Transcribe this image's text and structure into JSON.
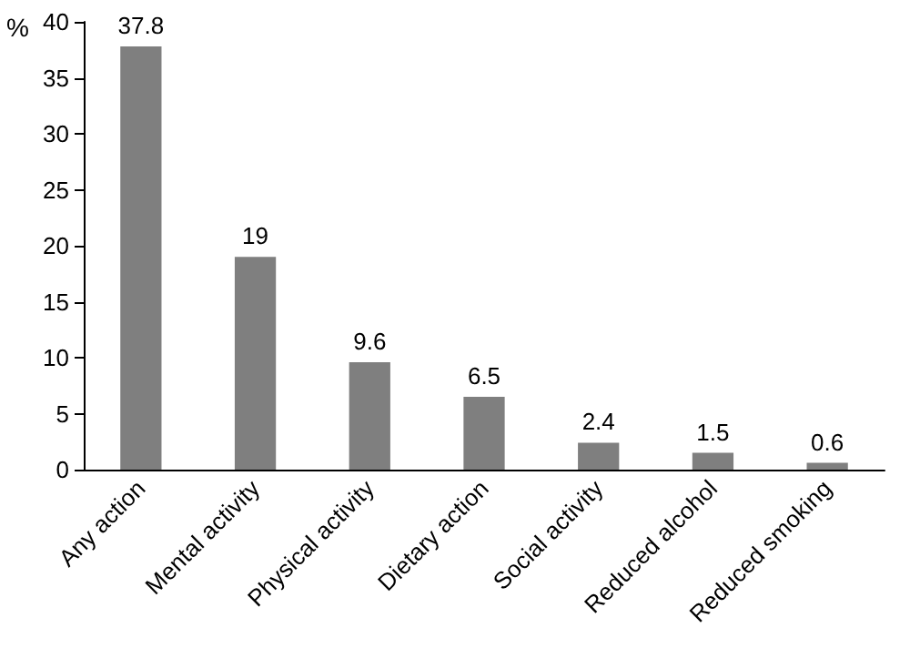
{
  "chart_data": {
    "type": "bar",
    "ylabel": "%",
    "categories": [
      "Any action",
      "Mental activity",
      "Physical activity",
      "Dietary action",
      "Social activity",
      "Reduced alcohol",
      "Reduced smoking"
    ],
    "values": [
      37.8,
      19,
      9.6,
      6.5,
      2.4,
      1.5,
      0.6
    ],
    "color": "#7f7f7f",
    "ylim": [
      0,
      40
    ],
    "yticks": [
      0,
      5,
      10,
      15,
      20,
      25,
      30,
      35,
      40
    ],
    "grid": false,
    "data_labels": true
  }
}
